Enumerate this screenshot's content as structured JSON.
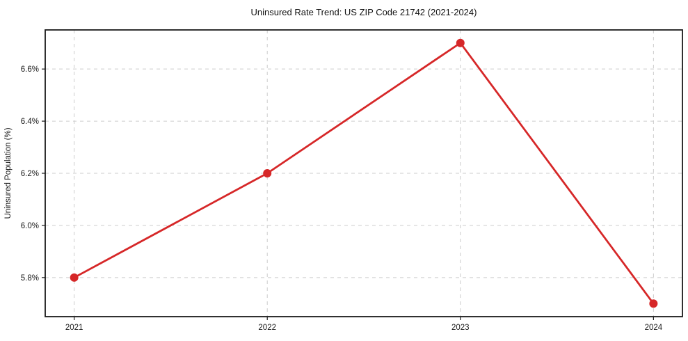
{
  "title": "Uninsured Rate Trend: US ZIP Code 21742 (2021-2024)",
  "chart_data": {
    "type": "line",
    "title": "Uninsured Rate Trend: US ZIP Code 21742 (2021-2024)",
    "xlabel": "",
    "ylabel": "Uninsured Population (%)",
    "x": [
      2021,
      2022,
      2023,
      2024
    ],
    "series": [
      {
        "name": "Uninsured Population (%)",
        "values": [
          5.8,
          6.2,
          6.7,
          5.7
        ]
      }
    ],
    "xticks": [
      2021,
      2022,
      2023,
      2024
    ],
    "xtick_labels": [
      "2021",
      "2022",
      "2023",
      "2024"
    ],
    "yticks": [
      5.8,
      6.0,
      6.2,
      6.4,
      6.6
    ],
    "ytick_labels": [
      "5.8%",
      "6.0%",
      "6.2%",
      "6.4%",
      "6.6%"
    ],
    "xlim": [
      2020.85,
      2024.15
    ],
    "ylim": [
      5.65,
      6.75
    ],
    "grid": true,
    "grid_style": "dashed",
    "legend": "none",
    "line_color": "#d62728",
    "marker": "circle",
    "marker_color": "#d62728",
    "grid_color": "#cccccc",
    "spine_color": "#1a1a1a",
    "background_color": "#ffffff"
  }
}
